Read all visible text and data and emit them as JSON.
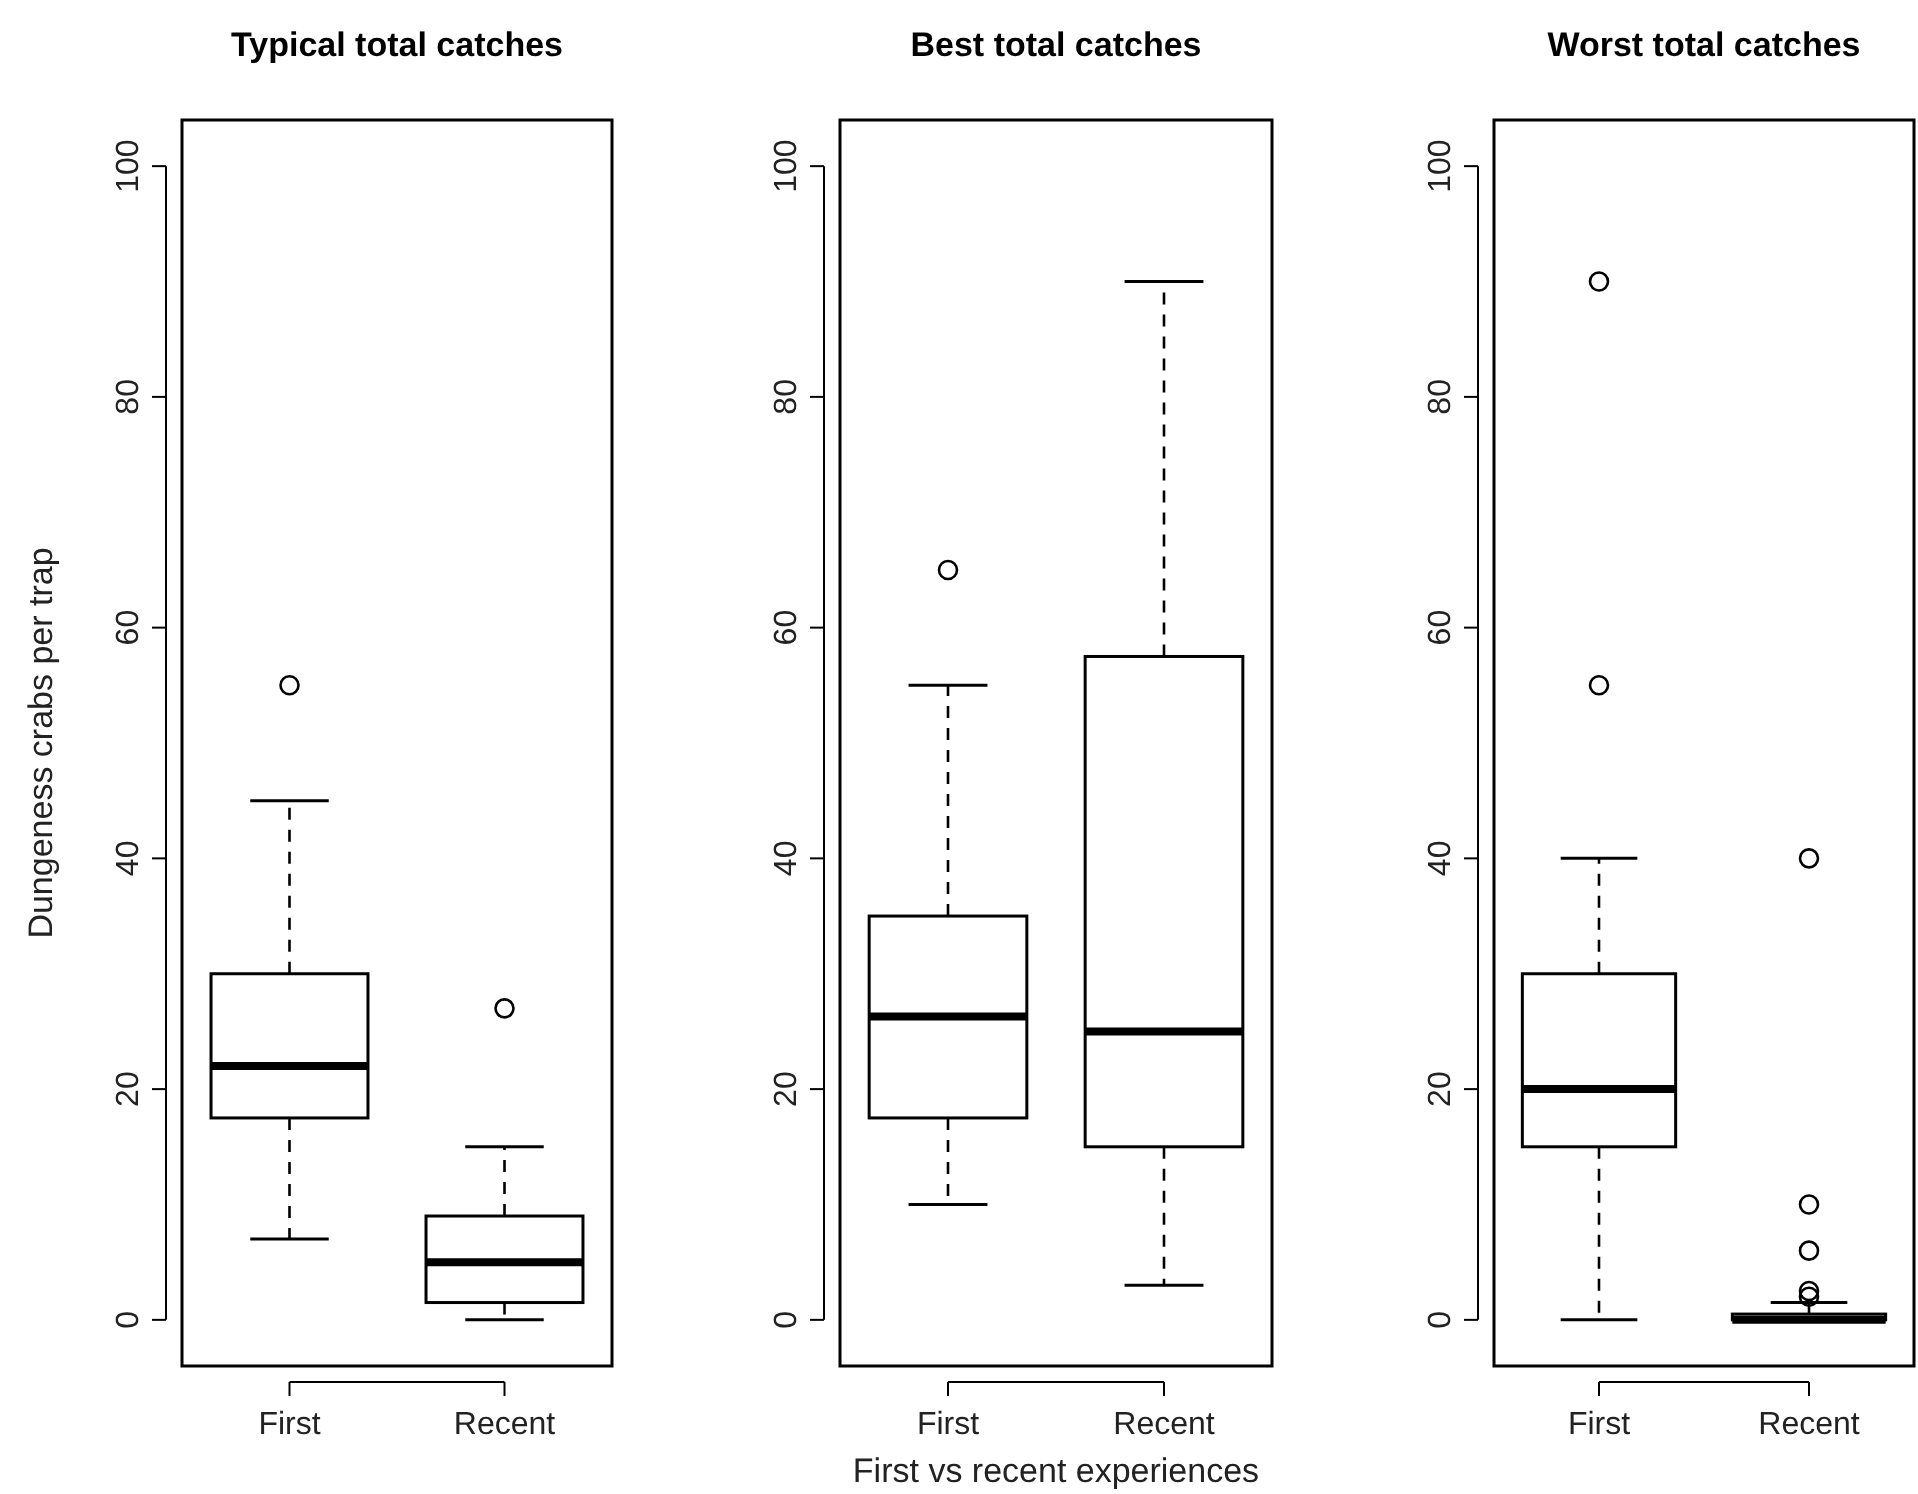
{
  "chart_data": [
    {
      "type": "box",
      "title": "Typical total catches",
      "ylabel": "Dungeness crabs per trap",
      "categories": [
        "First",
        "Recent"
      ],
      "ylim": [
        -4,
        104
      ],
      "yticks": [
        0,
        20,
        40,
        60,
        80,
        100
      ],
      "boxes": [
        {
          "low": 7,
          "q1": 17.5,
          "median": 22,
          "q3": 30,
          "high": 45,
          "outliers": [
            55
          ]
        },
        {
          "low": 0,
          "q1": 1.5,
          "median": 5,
          "q3": 9,
          "high": 15,
          "outliers": [
            27
          ]
        }
      ]
    },
    {
      "type": "box",
      "title": "Best total catches",
      "xlabel": "First vs recent experiences",
      "categories": [
        "First",
        "Recent"
      ],
      "ylim": [
        -4,
        104
      ],
      "yticks": [
        0,
        20,
        40,
        60,
        80,
        100
      ],
      "boxes": [
        {
          "low": 10,
          "q1": 17.5,
          "median": 26.3,
          "q3": 35,
          "high": 55,
          "outliers": [
            65
          ]
        },
        {
          "low": 3,
          "q1": 15,
          "median": 25,
          "q3": 57.5,
          "high": 90
        }
      ]
    },
    {
      "type": "box",
      "title": "Worst total catches",
      "categories": [
        "First",
        "Recent"
      ],
      "ylim": [
        -4,
        104
      ],
      "yticks": [
        0,
        20,
        40,
        60,
        80,
        100
      ],
      "boxes": [
        {
          "low": 0,
          "q1": 15,
          "median": 20,
          "q3": 30,
          "high": 40,
          "outliers": [
            55,
            90
          ]
        },
        {
          "low": 0,
          "q1": 0,
          "median": 0,
          "q3": 0.5,
          "high": 1.5,
          "outliers": [
            2,
            2.5,
            6,
            10,
            40
          ]
        }
      ]
    }
  ]
}
